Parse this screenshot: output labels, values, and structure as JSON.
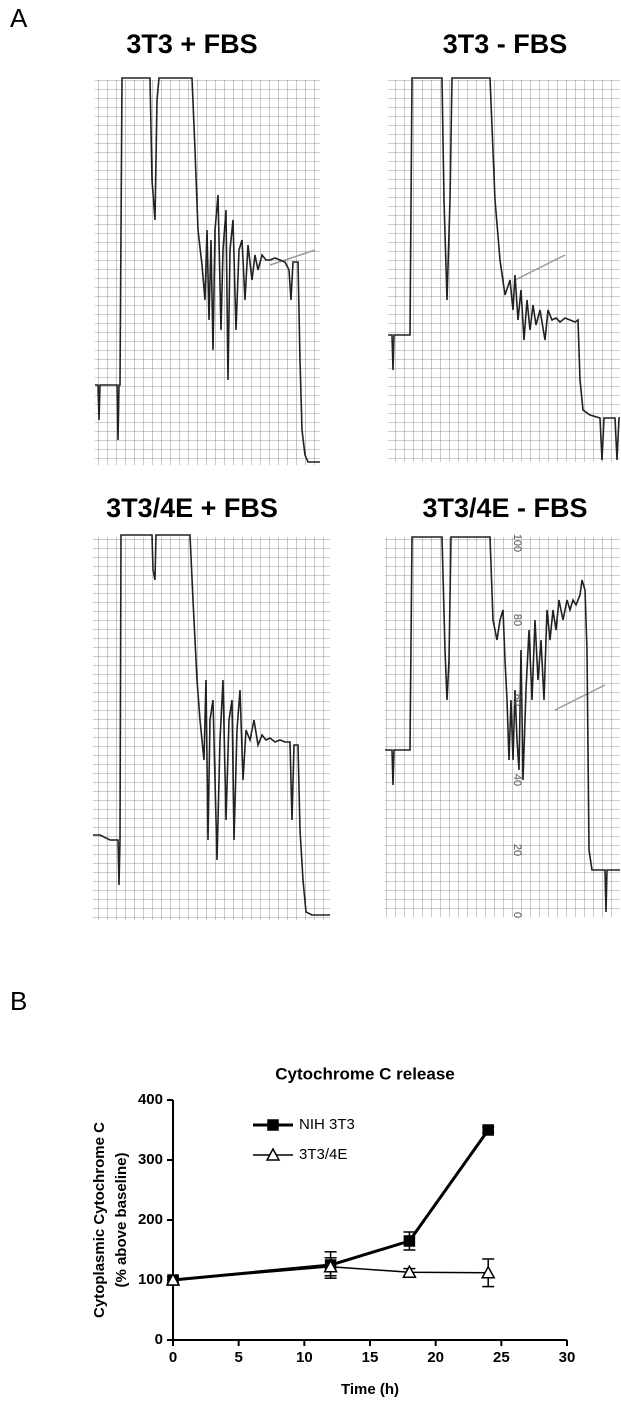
{
  "panel_labels": [
    "A",
    "B"
  ],
  "panel_a": {
    "panels": [
      {
        "title": "3T3 + FBS"
      },
      {
        "title": "3T3 - FBS"
      },
      {
        "title": "3T3/4E + FBS"
      },
      {
        "title": "3T3/4E - FBS"
      }
    ],
    "scale_labels": [
      "100",
      "80",
      "60",
      "40",
      "20",
      "0"
    ]
  },
  "chart_data": {
    "type": "line",
    "title": "Cytochrome C release",
    "xlabel": "Time (h)",
    "ylabel": [
      "Cytoplasmic Cytochrome C",
      "(% above baseline)"
    ],
    "x": [
      0,
      12,
      18,
      24
    ],
    "series": [
      {
        "name": "NIH 3T3",
        "color": "#000000",
        "marker": "square",
        "filled": true,
        "line_width": 3,
        "values": [
          100,
          125,
          165,
          350
        ],
        "errors": [
          5,
          22,
          15,
          5
        ]
      },
      {
        "name": "3T3/4E",
        "color": "#000000",
        "marker": "triangle",
        "filled": false,
        "line_width": 1.5,
        "values": [
          100,
          122,
          113,
          112
        ],
        "errors": [
          5,
          15,
          6,
          23
        ]
      }
    ],
    "xlim": [
      0,
      30
    ],
    "xticks": [
      0,
      5,
      10,
      15,
      20,
      25,
      30
    ],
    "ylim": [
      0,
      400
    ],
    "yticks": [
      0,
      100,
      200,
      300,
      400
    ],
    "grid": false,
    "legend": "upper left"
  }
}
